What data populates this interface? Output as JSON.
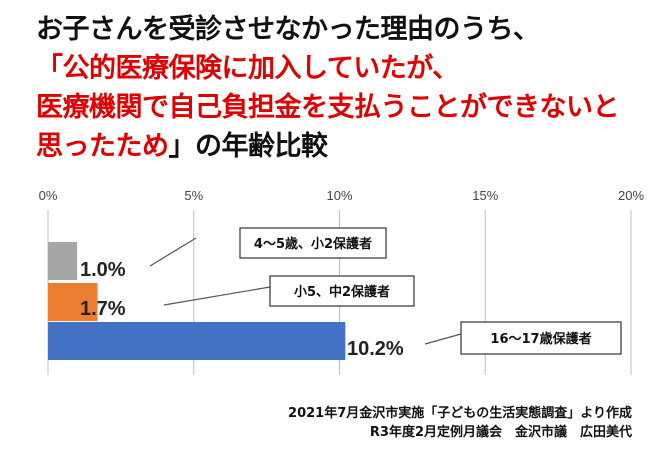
{
  "title": {
    "line1": "お子さんを受診させなかった理由のうち、",
    "line2": "「公的医療保険に加入していたが、",
    "line3": "医療機関で自己負担金を支払うことができないと",
    "line4_red": "思ったため",
    "line4_rest": "」の年齢比較"
  },
  "chart_data": {
    "type": "bar",
    "orientation": "horizontal",
    "categories": [
      "4～5歳、小2保護者",
      "小5、中2保護者",
      "16～17歳保護者"
    ],
    "values": [
      1.0,
      1.7,
      10.2
    ],
    "value_labels": [
      "1.0%",
      "1.7%",
      "10.2%"
    ],
    "colors": [
      "#a6a6a6",
      "#ed7d31",
      "#4472c4"
    ],
    "xlim": [
      0,
      20
    ],
    "xticks": [
      0,
      5,
      10,
      15,
      20
    ],
    "xtick_labels": [
      "0%",
      "5%",
      "10%",
      "15%",
      "20%"
    ],
    "axis_position": "top",
    "grid": true
  },
  "source": {
    "line1": "2021年7月金沢市実施「子どもの生活実態調査」より作成",
    "line2": "R3年度2月定例月議会　金沢市議　広田美代"
  }
}
